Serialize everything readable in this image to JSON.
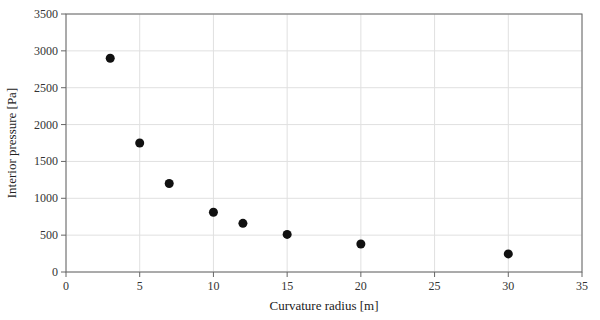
{
  "chart_data": {
    "type": "scatter",
    "x": [
      3,
      5,
      7,
      10,
      12,
      15,
      20,
      30
    ],
    "values": [
      2900,
      1750,
      1200,
      810,
      660,
      510,
      380,
      245
    ],
    "xlabel": "Curvature radius [m]",
    "ylabel": "Interior pressure [Pa]",
    "xlim": [
      0,
      35
    ],
    "ylim": [
      0,
      3500
    ],
    "xticks": [
      0,
      5,
      10,
      15,
      20,
      25,
      30,
      35
    ],
    "yticks": [
      0,
      500,
      1000,
      1500,
      2000,
      2500,
      3000,
      3500
    ],
    "color": "#111111",
    "grid": true
  }
}
